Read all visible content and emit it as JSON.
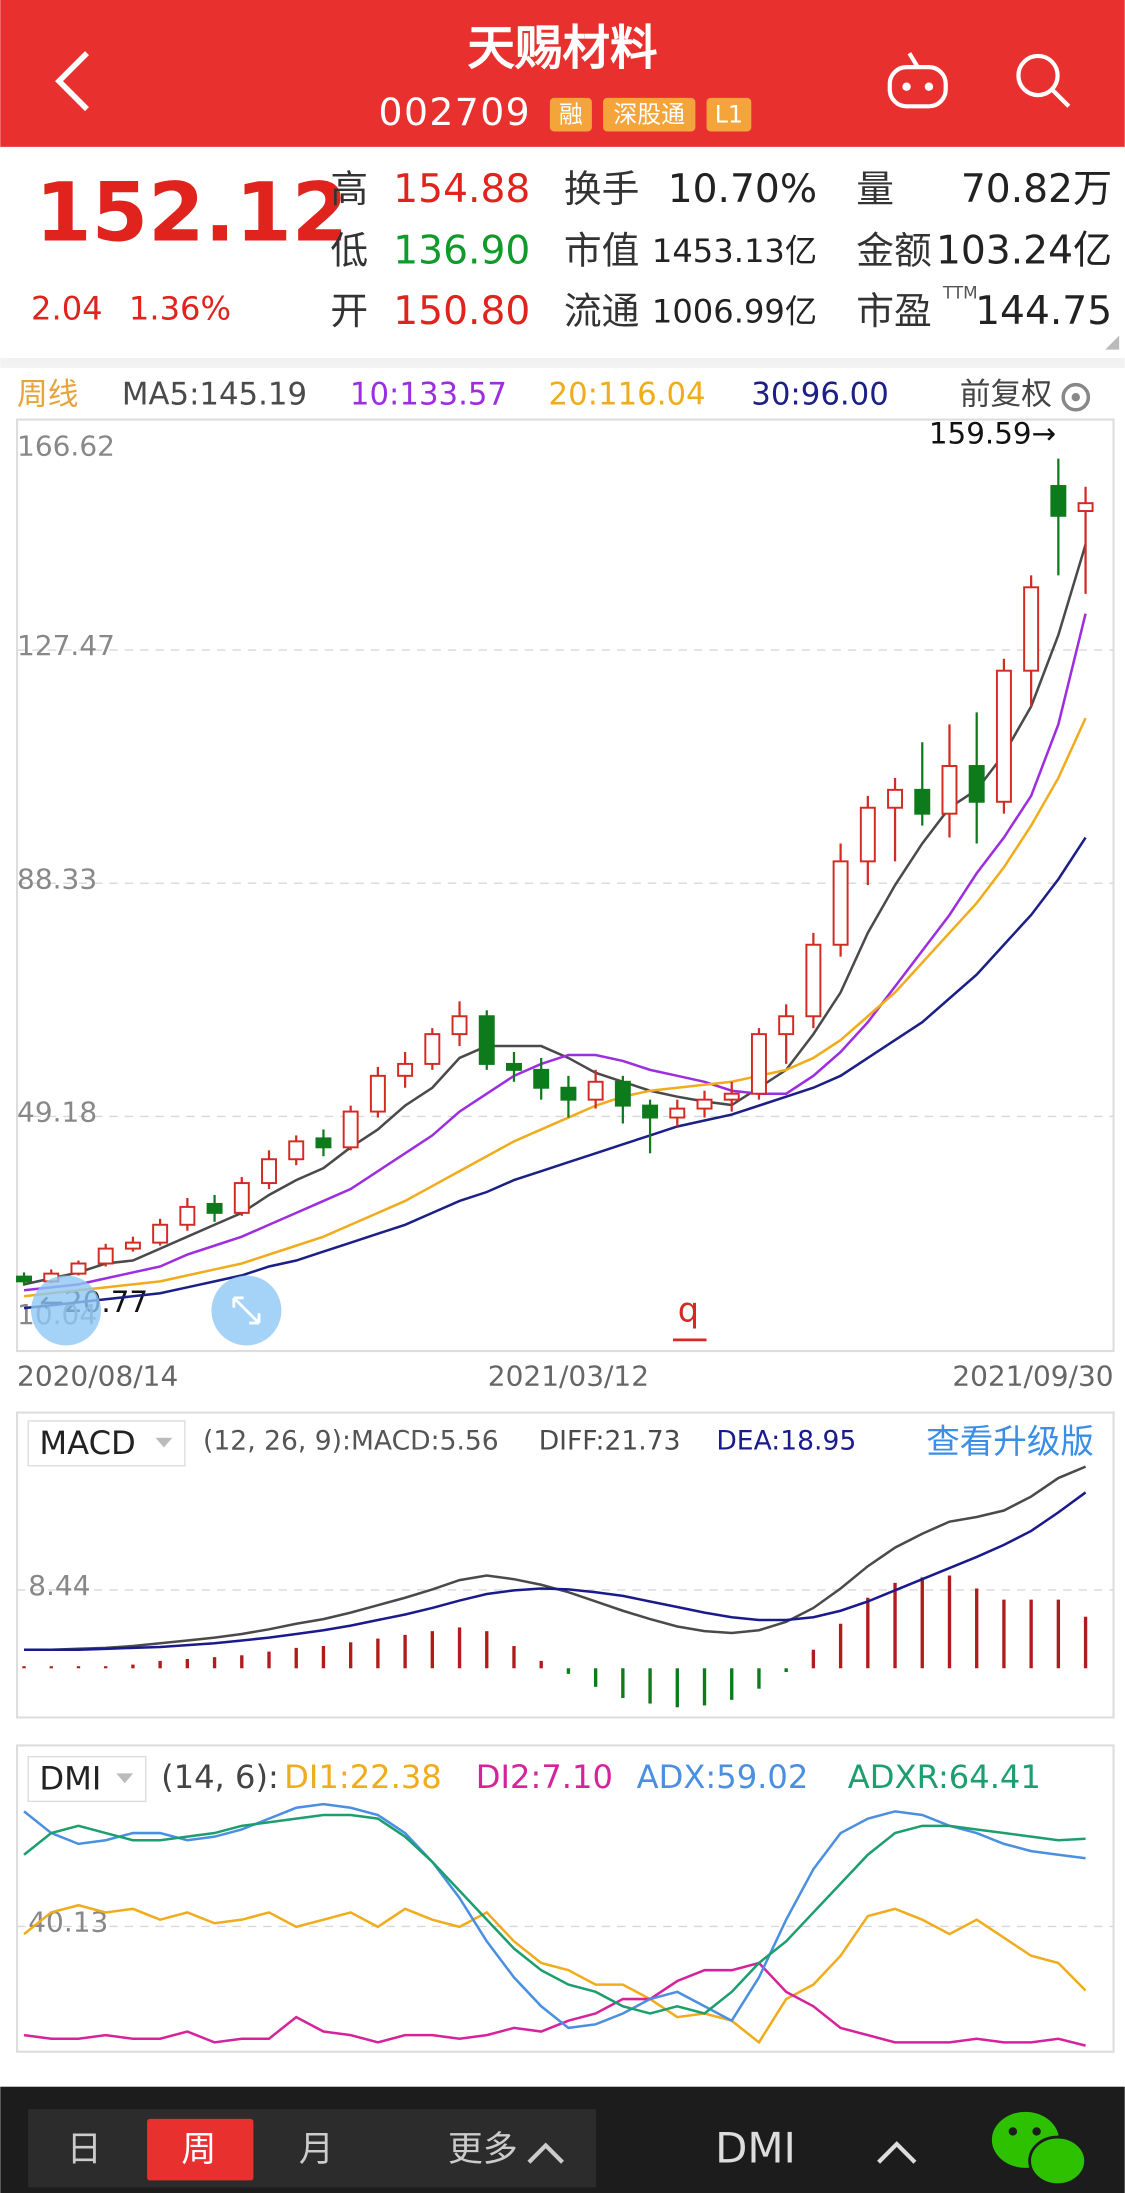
{
  "header": {
    "title": "天赐材料",
    "code": "002709",
    "tags": [
      "融",
      "深股通",
      "L1"
    ]
  },
  "quote": {
    "price": "152.12",
    "change": "2.04",
    "change_pct": "1.36%",
    "stats": [
      [
        {
          "label": "高",
          "value": "154.88",
          "color": "#e0231c"
        },
        {
          "label": "换手",
          "value": "10.70%",
          "color": "#222"
        },
        {
          "label": "量",
          "value": "70.82万",
          "color": "#222"
        }
      ],
      [
        {
          "label": "低",
          "value": "136.90",
          "color": "#0f9a2a"
        },
        {
          "label": "市值",
          "value": "1453.13亿",
          "color": "#222"
        },
        {
          "label": "金额",
          "value": "103.24亿",
          "color": "#222"
        }
      ],
      [
        {
          "label": "开",
          "value": "150.80",
          "color": "#e0231c"
        },
        {
          "label": "流通",
          "value": "1006.99亿",
          "color": "#222"
        },
        {
          "label": "市盈",
          "sup": "TTM",
          "value": "144.75",
          "color": "#222"
        }
      ]
    ]
  },
  "chart_data": [
    {
      "type": "candlestick",
      "period": "周线",
      "adjust": "前复权",
      "categories": [
        "2020/08/14",
        null,
        null,
        null,
        null,
        null,
        null,
        null,
        null,
        null,
        null,
        null,
        null,
        null,
        null,
        null,
        null,
        null,
        null,
        null,
        "2021/03/12",
        null,
        null,
        null,
        null,
        null,
        null,
        null,
        null,
        null,
        null,
        null,
        null,
        null,
        null,
        null,
        null,
        null,
        null,
        "2021/09/30"
      ],
      "open": [
        22.3,
        21.5,
        22.8,
        24.5,
        27,
        28,
        31,
        34.5,
        33,
        38,
        42,
        45.5,
        44,
        50,
        56,
        58,
        63,
        66,
        58,
        57,
        54,
        52,
        55,
        51,
        49,
        50.5,
        52,
        53,
        63,
        66,
        78,
        92,
        101,
        104,
        100,
        108,
        102,
        124,
        155,
        150.8
      ],
      "high": [
        23,
        23.5,
        25,
        27.8,
        29,
        32,
        35.5,
        36,
        39,
        43.5,
        46,
        47,
        51,
        57.5,
        60,
        64,
        68.5,
        67,
        60,
        59,
        56,
        57,
        56,
        52,
        52,
        53.5,
        55,
        64,
        68,
        80,
        95,
        103,
        106,
        112,
        115,
        117,
        126,
        140,
        159.59,
        154.88
      ],
      "low": [
        20.77,
        21.2,
        22.5,
        24,
        26.5,
        27.5,
        30,
        31.5,
        32.5,
        37,
        41,
        42.5,
        43.5,
        49,
        54,
        57,
        61,
        57,
        55,
        52,
        49,
        50.5,
        48,
        43,
        47.5,
        49,
        50,
        52,
        58,
        64,
        76,
        88,
        92,
        98,
        96,
        95,
        100,
        118,
        140,
        136.9
      ],
      "close": [
        21.5,
        22.8,
        24.5,
        27,
        28,
        31,
        34,
        33,
        38,
        42,
        45,
        44,
        50,
        56,
        58,
        63,
        66,
        58,
        57,
        54,
        52,
        55,
        51,
        49,
        50.5,
        52,
        53,
        63,
        66,
        78,
        92,
        101,
        104,
        100,
        108,
        102,
        124,
        138,
        150,
        152.12
      ],
      "up_color": "#d32a22",
      "down_color": "#0d7a1b",
      "series": [
        {
          "name": "MA5:145.19",
          "color": "#4a4a4a",
          "values": [
            21,
            22,
            23,
            24.5,
            25,
            27,
            29,
            31,
            33,
            36,
            38.5,
            40.5,
            44,
            47,
            51,
            54,
            59,
            61,
            61,
            61,
            59,
            56.5,
            55,
            53.5,
            52.5,
            51.7,
            51.1,
            54,
            57,
            63,
            70,
            80,
            88,
            95,
            101,
            104,
            110,
            118,
            130,
            145.19
          ]
        },
        {
          "name": "10:133.57",
          "color": "#9d2ee0",
          "values": [
            20,
            20.5,
            21,
            22,
            23,
            24,
            26,
            27.5,
            29,
            31,
            33,
            35,
            37,
            40,
            43,
            46,
            50,
            53,
            56,
            58,
            59.5,
            59.5,
            58.5,
            57,
            56,
            55,
            53.5,
            53,
            53,
            56,
            60,
            65,
            71,
            77,
            83,
            90,
            96,
            103,
            115,
            133.57
          ]
        },
        {
          "name": "20:116.04",
          "color": "#f0ac1c",
          "values": [
            19,
            19.5,
            20,
            20.5,
            21,
            21.5,
            22.5,
            23.5,
            24.5,
            26,
            27.5,
            29,
            31,
            33,
            35,
            37.5,
            40,
            42.5,
            45,
            47,
            49,
            51,
            52.5,
            53.5,
            54,
            54.5,
            55,
            56,
            57,
            59,
            62,
            66,
            70,
            75,
            80,
            85,
            91,
            98,
            106,
            116.04
          ]
        },
        {
          "name": "30:96.00",
          "color": "#1b1f86",
          "values": [
            17,
            17.5,
            18,
            18.5,
            19,
            19.5,
            20.5,
            21.5,
            22.5,
            24,
            25,
            26.5,
            28,
            29.5,
            31,
            33,
            35,
            36.5,
            38.5,
            40,
            41.5,
            43,
            44.5,
            46,
            47.5,
            48.5,
            49.5,
            51,
            52.5,
            54,
            56,
            59,
            62,
            65,
            69,
            73,
            78,
            83,
            89,
            96
          ]
        }
      ],
      "ylim": [
        10.04,
        166.62
      ],
      "yticks": [
        166.62,
        127.47,
        88.33,
        49.18,
        10.04
      ],
      "grid": true,
      "max_label": "159.59→",
      "min_label": "←20.77",
      "annotation": "q"
    },
    {
      "type": "macd",
      "title": "MACD",
      "params": "(12, 26, 9):MACD:5.56",
      "upgrade": "查看升级版",
      "series": [
        {
          "name": "DIFF:21.73",
          "color": "#4a4a4a",
          "values": [
            2,
            2,
            2.1,
            2.2,
            2.4,
            2.7,
            3,
            3.3,
            3.7,
            4.2,
            4.8,
            5.3,
            6,
            6.8,
            7.6,
            8.5,
            9.5,
            10,
            9.6,
            9,
            8.2,
            7.2,
            6.2,
            5.3,
            4.5,
            4,
            3.8,
            4.1,
            5,
            6.5,
            8.6,
            11,
            13,
            14.5,
            15.8,
            16.3,
            17,
            18.5,
            20.5,
            21.73
          ]
        },
        {
          "name": "DEA:18.95",
          "color": "#1a1a8c",
          "values": [
            2,
            2,
            2,
            2.1,
            2.2,
            2.3,
            2.5,
            2.7,
            3,
            3.3,
            3.7,
            4.1,
            4.6,
            5.2,
            5.8,
            6.5,
            7.3,
            8,
            8.4,
            8.6,
            8.5,
            8.2,
            7.8,
            7.2,
            6.6,
            6,
            5.5,
            5.2,
            5.2,
            5.5,
            6.2,
            7.2,
            8.4,
            9.6,
            10.8,
            12,
            13.3,
            14.8,
            16.8,
            18.95
          ]
        }
      ],
      "histogram": [
        0,
        0,
        0.2,
        0.2,
        0.4,
        0.8,
        1,
        1.2,
        1.4,
        1.8,
        2.2,
        2.4,
        2.8,
        3.2,
        3.6,
        4,
        4.4,
        4,
        2.4,
        0.8,
        -0.6,
        -2,
        -3.2,
        -3.8,
        -4.2,
        -4,
        -3.4,
        -2.2,
        -0.4,
        2,
        4.8,
        7.6,
        9.2,
        9.8,
        10,
        8.6,
        7.4,
        7.4,
        7.4,
        5.56
      ],
      "up_color": "#b01c1c",
      "down_color": "#0d7a1b",
      "ylim": [
        -5.3,
        26.8
      ],
      "yticks": [
        8.44
      ],
      "grid": true
    },
    {
      "type": "line",
      "title": "DMI",
      "params": "(14, 6):",
      "series": [
        {
          "name": "DI1:22.38",
          "color": "#f0ac1c",
          "values": [
            38,
            44,
            46,
            44,
            45,
            42,
            44,
            41,
            42,
            44,
            40,
            42,
            44,
            40,
            45,
            42,
            40,
            44,
            36,
            30,
            28,
            24,
            24,
            20,
            15,
            16,
            14,
            8,
            20,
            24,
            32,
            43,
            45,
            42,
            38,
            42,
            37,
            32,
            30,
            22.38
          ]
        },
        {
          "name": "DI2:7.10",
          "color": "#d6239c",
          "values": [
            10,
            9,
            9,
            10,
            9,
            9,
            11,
            8,
            9,
            9,
            15,
            11,
            10,
            8,
            10,
            10,
            9,
            10,
            12,
            11,
            14,
            16,
            20,
            20,
            25,
            28,
            28,
            30,
            22,
            18,
            12,
            10,
            8,
            8,
            8,
            9,
            8,
            8,
            9,
            7.1
          ]
        },
        {
          "name": "ADX:59.02",
          "color": "#4a8fe0",
          "values": [
            72,
            66,
            63,
            64,
            66,
            66,
            64,
            65,
            67,
            70,
            73,
            74,
            73,
            71,
            66,
            58,
            48,
            36,
            26,
            18,
            12,
            13,
            16,
            20,
            22,
            18,
            14,
            26,
            42,
            56,
            66,
            70,
            72,
            71,
            68,
            66,
            63,
            61,
            60,
            59.02
          ]
        },
        {
          "name": "ADXR:64.41",
          "color": "#1d9e6e",
          "values": [
            60,
            66,
            68,
            66,
            64,
            64,
            65,
            66,
            68,
            69,
            70,
            71,
            71,
            70,
            65,
            58,
            50,
            42,
            34,
            28,
            24,
            22,
            18,
            16,
            18,
            16,
            22,
            30,
            36,
            44,
            52,
            60,
            66,
            68,
            68,
            67,
            66,
            65,
            64,
            64.41
          ]
        }
      ],
      "ylim": [
        5.4,
        89.5
      ],
      "yticks": [
        40.13
      ],
      "grid": true
    }
  ],
  "nav": {
    "tabs": [
      "日",
      "周",
      "月",
      "更多"
    ],
    "active": 1,
    "indicator": "DMI"
  }
}
